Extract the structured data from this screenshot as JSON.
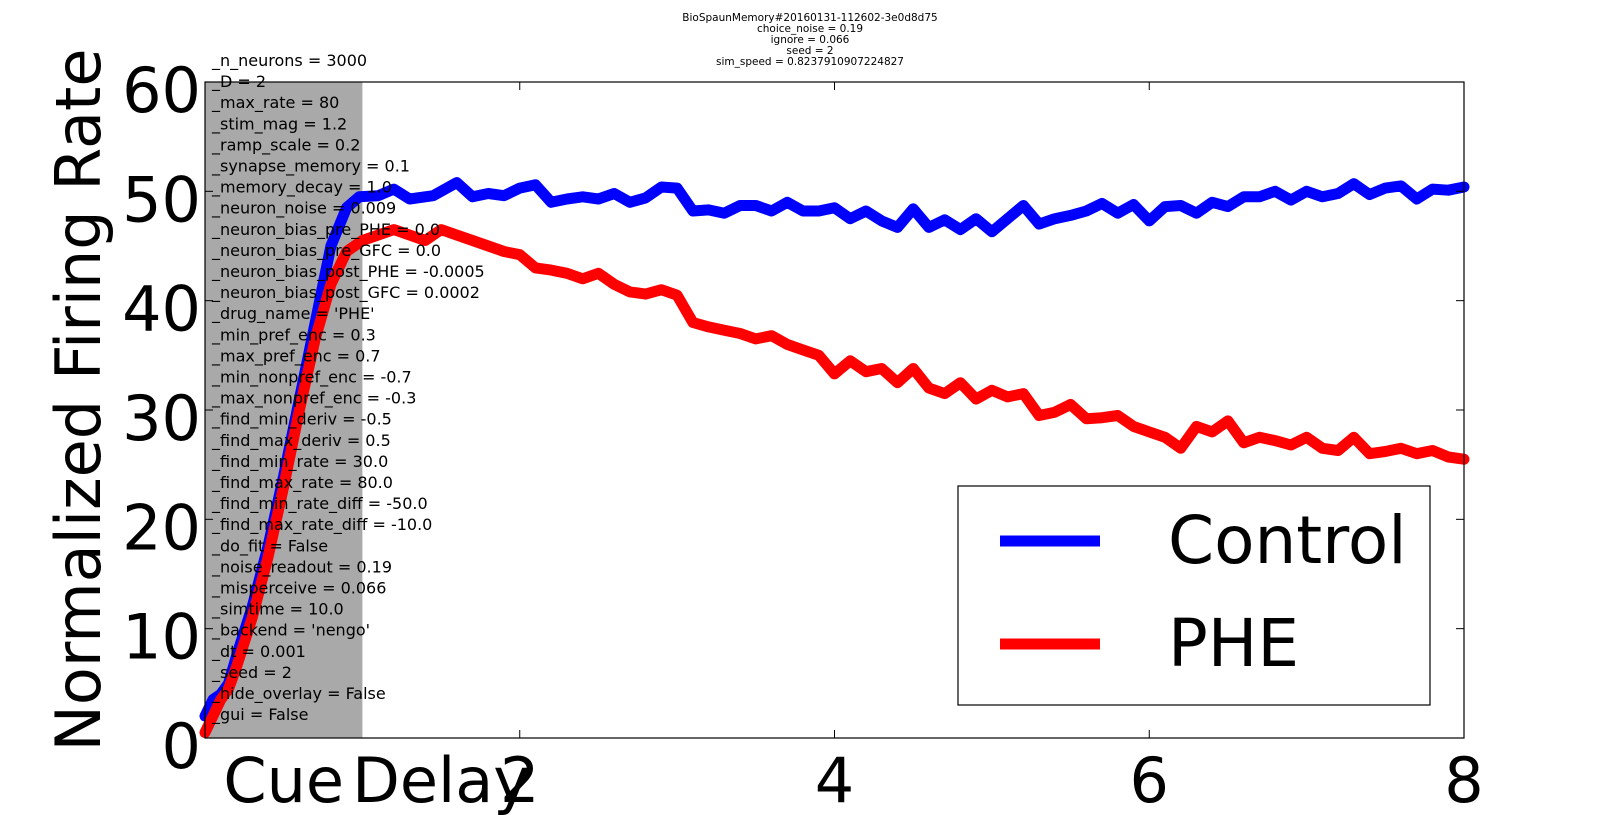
{
  "header": {
    "lines": [
      "BioSpaunMemory#20160131-112602-3e0d8d75",
      "choice_noise = 0.19",
      "ignore = 0.066",
      "seed = 2",
      "sim_speed = 0.8237910907224827"
    ]
  },
  "overlay_params": [
    "_n_neurons = 3000",
    "_D = 2",
    "_max_rate = 80",
    "_stim_mag = 1.2",
    "_ramp_scale = 0.2",
    "_synapse_memory = 0.1",
    "_memory_decay = 1.0",
    "_neuron_noise = 0.009",
    "_neuron_bias_pre_PHE = 0.0",
    "_neuron_bias_pre_GFC = 0.0",
    "_neuron_bias_post_PHE = -0.0005",
    "_neuron_bias_post_GFC = 0.0002",
    "_drug_name = 'PHE'",
    "_min_pref_enc = 0.3",
    "_max_pref_enc = 0.7",
    "_min_nonpref_enc = -0.7",
    "_max_nonpref_enc = -0.3",
    "_find_min_deriv = -0.5",
    "_find_max_deriv = 0.5",
    "_find_min_rate = 30.0",
    "_find_max_rate = 80.0",
    "_find_min_rate_diff = -50.0",
    "_find_max_rate_diff = -10.0",
    "_do_fit = False",
    "_noise_readout = 0.19",
    "_misperceive = 0.066",
    "_simtime = 10.0",
    "_backend = 'nengo'",
    "_dt = 0.001",
    "_seed = 2",
    "_hide_overlay = False",
    "_gui = False"
  ],
  "chart_data": {
    "type": "line",
    "title": "",
    "xlabel": "",
    "ylabel": "Normalized Firing Rate",
    "xlim": [
      0,
      8
    ],
    "ylim": [
      0,
      60
    ],
    "x_ticks": [
      {
        "value": 0.5,
        "label": "Cue"
      },
      {
        "value": 1.5,
        "label": "Delay"
      },
      {
        "value": 2,
        "label": "2"
      },
      {
        "value": 4,
        "label": "4"
      },
      {
        "value": 6,
        "label": "6"
      },
      {
        "value": 8,
        "label": "8"
      }
    ],
    "y_ticks": [
      0,
      10,
      20,
      30,
      40,
      50,
      60
    ],
    "shaded_region": {
      "x_start": 0,
      "x_end": 1,
      "color": "#a9a9a9"
    },
    "legend_position": "lower-right",
    "series": [
      {
        "name": "Control",
        "color": "#0000ff",
        "points": [
          [
            0,
            2
          ],
          [
            0.05,
            3.5
          ],
          [
            0.1,
            4
          ],
          [
            0.15,
            5
          ],
          [
            0.2,
            7.5
          ],
          [
            0.3,
            12
          ],
          [
            0.4,
            17.5
          ],
          [
            0.5,
            24
          ],
          [
            0.6,
            31
          ],
          [
            0.7,
            38
          ],
          [
            0.8,
            45
          ],
          [
            0.9,
            48.5
          ],
          [
            0.98,
            49.5
          ],
          [
            1.1,
            49.6
          ],
          [
            1.2,
            50.2
          ],
          [
            1.3,
            49.3
          ],
          [
            1.45,
            49.6
          ],
          [
            1.6,
            50.8
          ],
          [
            1.7,
            49.5
          ],
          [
            1.8,
            49.8
          ],
          [
            1.9,
            49.6
          ],
          [
            2.0,
            50.3
          ],
          [
            2.1,
            50.6
          ],
          [
            2.2,
            49
          ],
          [
            2.3,
            49.3
          ],
          [
            2.4,
            49.5
          ],
          [
            2.5,
            49.3
          ],
          [
            2.6,
            49.8
          ],
          [
            2.7,
            49
          ],
          [
            2.8,
            49.4
          ],
          [
            2.9,
            50.4
          ],
          [
            3.0,
            50.3
          ],
          [
            3.1,
            48.2
          ],
          [
            3.2,
            48.3
          ],
          [
            3.3,
            48
          ],
          [
            3.4,
            48.7
          ],
          [
            3.5,
            48.7
          ],
          [
            3.6,
            48.2
          ],
          [
            3.7,
            49
          ],
          [
            3.8,
            48.2
          ],
          [
            3.9,
            48.2
          ],
          [
            4.0,
            48.5
          ],
          [
            4.1,
            47.5
          ],
          [
            4.2,
            48.2
          ],
          [
            4.3,
            47.3
          ],
          [
            4.4,
            46.7
          ],
          [
            4.5,
            48.4
          ],
          [
            4.6,
            46.7
          ],
          [
            4.7,
            47.4
          ],
          [
            4.8,
            46.5
          ],
          [
            4.9,
            47.5
          ],
          [
            5.0,
            46.3
          ],
          [
            5.1,
            47.5
          ],
          [
            5.2,
            48.7
          ],
          [
            5.3,
            47
          ],
          [
            5.4,
            47.5
          ],
          [
            5.5,
            47.8
          ],
          [
            5.6,
            48.2
          ],
          [
            5.7,
            48.9
          ],
          [
            5.8,
            48
          ],
          [
            5.9,
            48.8
          ],
          [
            6.0,
            47.3
          ],
          [
            6.1,
            48.6
          ],
          [
            6.2,
            48.7
          ],
          [
            6.3,
            48
          ],
          [
            6.4,
            49
          ],
          [
            6.5,
            48.6
          ],
          [
            6.6,
            49.5
          ],
          [
            6.7,
            49.5
          ],
          [
            6.8,
            50
          ],
          [
            6.9,
            49.2
          ],
          [
            7.0,
            50
          ],
          [
            7.1,
            49.5
          ],
          [
            7.2,
            49.8
          ],
          [
            7.3,
            50.7
          ],
          [
            7.4,
            49.7
          ],
          [
            7.5,
            50.3
          ],
          [
            7.6,
            50.5
          ],
          [
            7.7,
            49.3
          ],
          [
            7.8,
            50.2
          ],
          [
            7.9,
            50.1
          ],
          [
            8.0,
            50.4
          ]
        ]
      },
      {
        "name": "PHE",
        "color": "#ff0000",
        "points": [
          [
            0,
            0.5
          ],
          [
            0.05,
            2
          ],
          [
            0.1,
            3.5
          ],
          [
            0.15,
            4.5
          ],
          [
            0.2,
            6.5
          ],
          [
            0.3,
            11
          ],
          [
            0.4,
            16.5
          ],
          [
            0.5,
            23
          ],
          [
            0.6,
            30
          ],
          [
            0.7,
            36.5
          ],
          [
            0.8,
            41.5
          ],
          [
            0.9,
            44.5
          ],
          [
            1.0,
            45.5
          ],
          [
            1.1,
            46
          ],
          [
            1.2,
            46.5
          ],
          [
            1.3,
            46
          ],
          [
            1.4,
            45.5
          ],
          [
            1.5,
            46.5
          ],
          [
            1.6,
            46
          ],
          [
            1.7,
            45.5
          ],
          [
            1.8,
            45
          ],
          [
            1.9,
            44.5
          ],
          [
            2.0,
            44.2
          ],
          [
            2.1,
            43
          ],
          [
            2.2,
            42.8
          ],
          [
            2.3,
            42.5
          ],
          [
            2.4,
            42
          ],
          [
            2.5,
            42.5
          ],
          [
            2.6,
            41.5
          ],
          [
            2.7,
            40.8
          ],
          [
            2.8,
            40.6
          ],
          [
            2.9,
            41
          ],
          [
            3.0,
            40.5
          ],
          [
            3.1,
            38
          ],
          [
            3.2,
            37.6
          ],
          [
            3.3,
            37.3
          ],
          [
            3.4,
            37
          ],
          [
            3.5,
            36.5
          ],
          [
            3.6,
            36.8
          ],
          [
            3.7,
            36
          ],
          [
            3.8,
            35.5
          ],
          [
            3.9,
            35
          ],
          [
            4.0,
            33.3
          ],
          [
            4.1,
            34.5
          ],
          [
            4.2,
            33.5
          ],
          [
            4.3,
            33.8
          ],
          [
            4.4,
            32.5
          ],
          [
            4.5,
            33.8
          ],
          [
            4.6,
            32
          ],
          [
            4.7,
            31.5
          ],
          [
            4.8,
            32.5
          ],
          [
            4.9,
            31
          ],
          [
            5.0,
            31.8
          ],
          [
            5.1,
            31.2
          ],
          [
            5.2,
            31.5
          ],
          [
            5.3,
            29.5
          ],
          [
            5.4,
            29.8
          ],
          [
            5.5,
            30.5
          ],
          [
            5.6,
            29.2
          ],
          [
            5.7,
            29.3
          ],
          [
            5.8,
            29.5
          ],
          [
            5.9,
            28.5
          ],
          [
            6.0,
            28
          ],
          [
            6.1,
            27.5
          ],
          [
            6.2,
            26.5
          ],
          [
            6.3,
            28.5
          ],
          [
            6.4,
            28
          ],
          [
            6.5,
            29
          ],
          [
            6.6,
            27
          ],
          [
            6.7,
            27.5
          ],
          [
            6.8,
            27.2
          ],
          [
            6.9,
            26.8
          ],
          [
            7.0,
            27.5
          ],
          [
            7.1,
            26.5
          ],
          [
            7.2,
            26.3
          ],
          [
            7.3,
            27.5
          ],
          [
            7.4,
            26
          ],
          [
            7.5,
            26.2
          ],
          [
            7.6,
            26.5
          ],
          [
            7.7,
            26
          ],
          [
            7.8,
            26.3
          ],
          [
            7.9,
            25.7
          ],
          [
            8.0,
            25.5
          ]
        ]
      }
    ]
  }
}
